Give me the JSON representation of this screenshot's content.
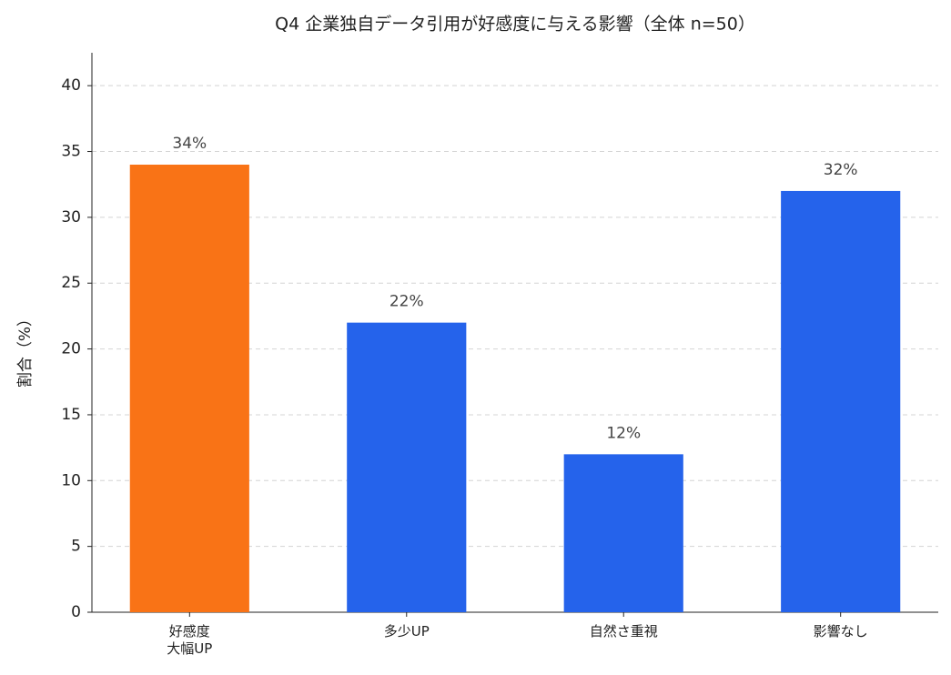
{
  "chart_data": {
    "type": "bar",
    "title": "Q4 企業独自データ引用が好感度に与える影響（全体 n=50）",
    "y_label": "割合（%）",
    "categories": [
      "好感度\n大幅UP",
      "多少UP",
      "自然さ重視",
      "影響なし"
    ],
    "values": [
      34,
      22,
      12,
      32
    ],
    "value_labels": [
      "34%",
      "22%",
      "12%",
      "32%"
    ],
    "colors": [
      "#f97316",
      "#2563eb",
      "#2563eb",
      "#2563eb"
    ],
    "ylim": [
      0,
      42.5
    ],
    "yticks": [
      0,
      5,
      10,
      15,
      20,
      25,
      30,
      35,
      40
    ],
    "grid": true
  }
}
